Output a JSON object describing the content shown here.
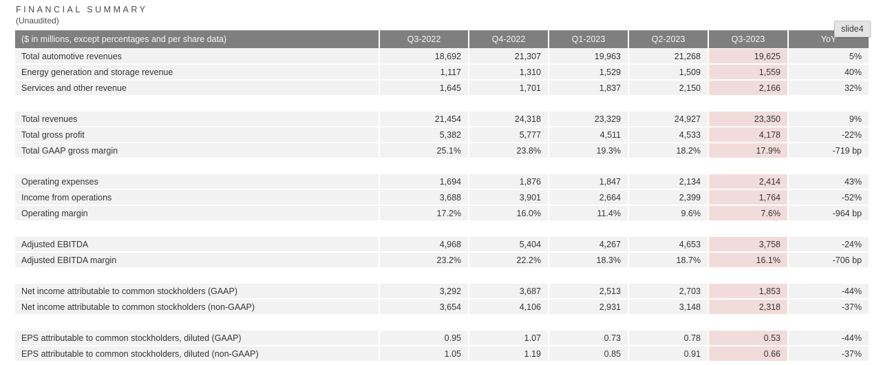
{
  "header": {
    "title": "FINANCIAL SUMMARY",
    "subtitle": "(Unaudited)"
  },
  "badge": {
    "label": "slide4"
  },
  "colors": {
    "header_bar": "#7f7f7f",
    "header_text": "#f4f4f4",
    "row_background": "#f2f2f2",
    "highlight_background": "#f2dcdb",
    "body_text": "#343434"
  },
  "table": {
    "columns": [
      "($ in millions, except percentages and per share data)",
      "Q3-2022",
      "Q4-2022",
      "Q1-2023",
      "Q2-2023",
      "Q3-2023",
      "YoY"
    ],
    "highlight_column": "Q3-2023",
    "sections": [
      {
        "rows": [
          {
            "label": "Total automotive revenues",
            "values": [
              "18,692",
              "21,307",
              "19,963",
              "21,268",
              "19,625",
              "5%"
            ]
          },
          {
            "label": "Energy generation and storage revenue",
            "values": [
              "1,117",
              "1,310",
              "1,529",
              "1,509",
              "1,559",
              "40%"
            ]
          },
          {
            "label": "Services and other revenue",
            "values": [
              "1,645",
              "1,701",
              "1,837",
              "2,150",
              "2,166",
              "32%"
            ]
          }
        ]
      },
      {
        "rows": [
          {
            "label": "Total revenues",
            "values": [
              "21,454",
              "24,318",
              "23,329",
              "24,927",
              "23,350",
              "9%"
            ]
          },
          {
            "label": "Total gross profit",
            "values": [
              "5,382",
              "5,777",
              "4,511",
              "4,533",
              "4,178",
              "-22%"
            ]
          },
          {
            "label": "Total GAAP gross margin",
            "values": [
              "25.1%",
              "23.8%",
              "19.3%",
              "18.2%",
              "17.9%",
              "-719 bp"
            ]
          }
        ]
      },
      {
        "rows": [
          {
            "label": "Operating expenses",
            "values": [
              "1,694",
              "1,876",
              "1,847",
              "2,134",
              "2,414",
              "43%"
            ]
          },
          {
            "label": "Income from operations",
            "values": [
              "3,688",
              "3,901",
              "2,664",
              "2,399",
              "1,764",
              "-52%"
            ]
          },
          {
            "label": "Operating margin",
            "values": [
              "17.2%",
              "16.0%",
              "11.4%",
              "9.6%",
              "7.6%",
              "-964 bp"
            ]
          }
        ]
      },
      {
        "rows": [
          {
            "label": "Adjusted EBITDA",
            "values": [
              "4,968",
              "5,404",
              "4,267",
              "4,653",
              "3,758",
              "-24%"
            ]
          },
          {
            "label": "Adjusted EBITDA margin",
            "values": [
              "23.2%",
              "22.2%",
              "18.3%",
              "18.7%",
              "16.1%",
              "-706 bp"
            ]
          }
        ]
      },
      {
        "rows": [
          {
            "label": "Net income attributable to common stockholders (GAAP)",
            "values": [
              "3,292",
              "3,687",
              "2,513",
              "2,703",
              "1,853",
              "-44%"
            ]
          },
          {
            "label": "Net income attributable to common stockholders (non-GAAP)",
            "values": [
              "3,654",
              "4,106",
              "2,931",
              "3,148",
              "2,318",
              "-37%"
            ]
          }
        ]
      },
      {
        "rows": [
          {
            "label": "EPS attributable to common stockholders, diluted (GAAP)",
            "values": [
              "0.95",
              "1.07",
              "0.73",
              "0.78",
              "0.53",
              "-44%"
            ]
          },
          {
            "label": "EPS attributable to common stockholders, diluted (non-GAAP)",
            "values": [
              "1.05",
              "1.19",
              "0.85",
              "0.91",
              "0.66",
              "-37%"
            ]
          }
        ]
      }
    ]
  }
}
